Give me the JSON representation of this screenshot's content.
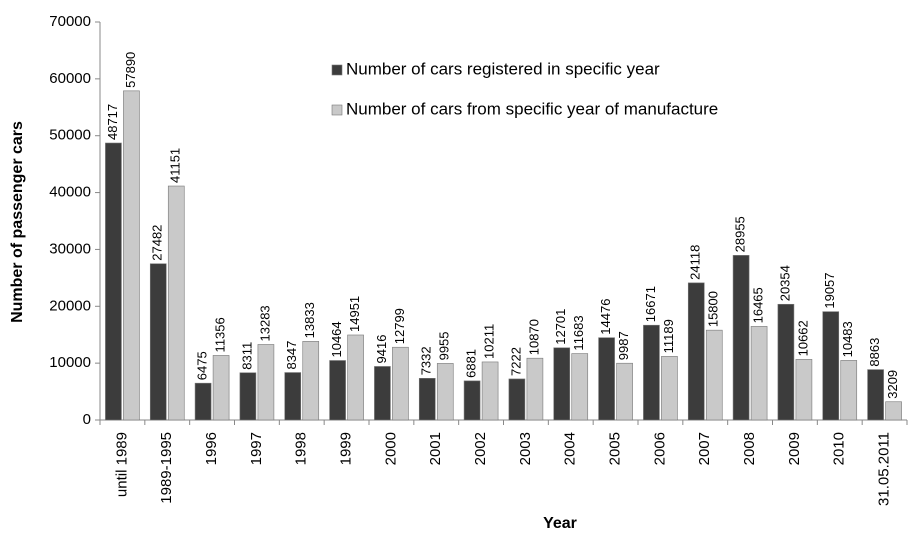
{
  "chart_data": {
    "type": "bar",
    "y_label": "Number of passenger cars",
    "x_label": "Year",
    "categories": [
      "until 1989",
      "1989-1995",
      "1996",
      "1997",
      "1998",
      "1999",
      "2000",
      "2001",
      "2002",
      "2003",
      "2004",
      "2005",
      "2006",
      "2007",
      "2008",
      "2009",
      "2010",
      "31.05.2011"
    ],
    "series": [
      {
        "name": "Number of cars registered in specific year",
        "color": "#3c3c3c",
        "values": [
          48717,
          27482,
          6475,
          8311,
          8347,
          10464,
          9416,
          7332,
          6881,
          7222,
          12701,
          14476,
          16671,
          24118,
          28955,
          20354,
          19057,
          8863
        ]
      },
      {
        "name": "Number of cars from specific year of manufacture",
        "color": "#c9c9c9",
        "values": [
          57890,
          41151,
          11356,
          13283,
          13833,
          14951,
          12799,
          9955,
          10211,
          10870,
          11683,
          9987,
          11189,
          15800,
          16465,
          10662,
          10483,
          3209
        ]
      }
    ],
    "ylim": [
      0,
      70000
    ],
    "yticks": [
      0,
      10000,
      20000,
      30000,
      40000,
      50000,
      60000,
      70000
    ],
    "grid": false,
    "legend": "top"
  }
}
